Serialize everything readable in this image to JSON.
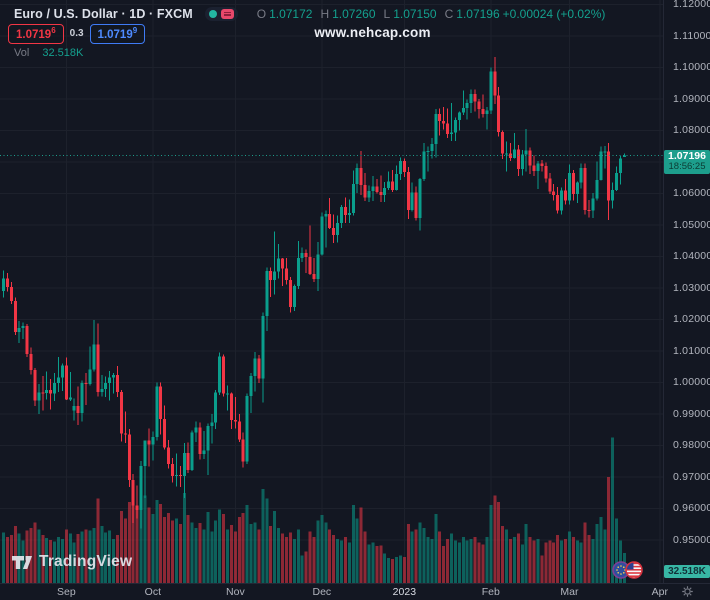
{
  "header": {
    "symbol_title": "Euro / U.S. Dollar · 1D · FXCM",
    "ohlc": {
      "o_label": "O",
      "o": "1.07172",
      "h_label": "H",
      "h": "1.07260",
      "l_label": "L",
      "l": "1.07150",
      "c_label": "C",
      "c": "1.07196",
      "change": "+0.00024 (+0.02%)"
    },
    "bid": {
      "main": "1.0719",
      "sup": "6"
    },
    "spread": "0.3",
    "ask": {
      "main": "1.0719",
      "sup": "9"
    },
    "watermark": "www.nehcap.com",
    "vol_label": "Vol",
    "vol_value": "32.518K"
  },
  "price_tag": {
    "price": "1.07196",
    "countdown": "18:56:25"
  },
  "vol_axis_tag": "32.518K",
  "logo_text": "TradingView",
  "colors": {
    "bg": "#131722",
    "grid": "#1d212c",
    "up": "#0a9e8c",
    "down": "#f23645",
    "axis_text": "#b2b5be",
    "price_line": "#1d9e8c"
  },
  "chart_data": {
    "type": "candlestick",
    "title": "Euro / U.S. Dollar · 1D · FXCM",
    "legend": "volume pane overlaid at bottom, grid on, price axis right, time axis bottom",
    "y_axis": {
      "min": 0.95,
      "max": 1.12,
      "step": 0.01,
      "tick_labels": [
        "1.12000",
        "1.11000",
        "1.10000",
        "1.09000",
        "1.08000",
        "1.07000",
        "1.06000",
        "1.05000",
        "1.04000",
        "1.03000",
        "1.02000",
        "1.01000",
        "1.00000",
        "0.99000",
        "0.98000",
        "0.97000",
        "0.96000",
        "0.95000"
      ]
    },
    "x_ticks": [
      {
        "label": "Sep",
        "i": 16
      },
      {
        "label": "Oct",
        "i": 38
      },
      {
        "label": "Nov",
        "i": 59
      },
      {
        "label": "Dec",
        "i": 81
      },
      {
        "label": "2023",
        "i": 102,
        "year": true
      },
      {
        "label": "Feb",
        "i": 124
      },
      {
        "label": "Mar",
        "i": 144
      },
      {
        "label": "Apr",
        "i": 167
      }
    ],
    "price_line_value": 1.07196,
    "last_volume_k": 32.518,
    "candles_format": [
      "open",
      "high",
      "low",
      "close",
      "volume_k"
    ],
    "candles": [
      [
        1.029,
        1.0355,
        1.027,
        1.033,
        55
      ],
      [
        1.033,
        1.0347,
        1.0288,
        1.0302,
        50
      ],
      [
        1.0302,
        1.0318,
        1.0248,
        1.0258,
        52
      ],
      [
        1.0258,
        1.027,
        1.015,
        1.016,
        62
      ],
      [
        1.016,
        1.0195,
        1.0125,
        1.0172,
        54
      ],
      [
        1.0172,
        1.019,
        1.0138,
        1.0178,
        46
      ],
      [
        1.0178,
        1.0185,
        1.008,
        1.009,
        57
      ],
      [
        1.009,
        1.011,
        1.0025,
        1.0039,
        60
      ],
      [
        1.0039,
        1.0046,
        0.9925,
        0.9943,
        66
      ],
      [
        0.9943,
        0.9995,
        0.99,
        0.9968,
        58
      ],
      [
        0.9968,
        1.002,
        0.991,
        0.9966,
        52
      ],
      [
        0.9966,
        1.0035,
        0.9945,
        0.9975,
        49
      ],
      [
        0.9975,
        1.001,
        0.9913,
        0.9965,
        47
      ],
      [
        0.9965,
        1.003,
        0.994,
        0.9998,
        45
      ],
      [
        0.9998,
        1.008,
        0.997,
        1.0015,
        50
      ],
      [
        1.0015,
        1.006,
        0.9972,
        1.0054,
        48
      ],
      [
        1.0054,
        1.0078,
        0.9944,
        0.9945,
        58
      ],
      [
        0.9945,
        1.0033,
        0.994,
        0.9952,
        54
      ],
      [
        0.991,
        0.9948,
        0.9878,
        0.9925,
        44
      ],
      [
        0.9925,
        0.9986,
        0.9864,
        0.9903,
        53
      ],
      [
        0.9903,
        1.0005,
        0.9875,
        0.9998,
        56
      ],
      [
        0.9998,
        1.003,
        0.9928,
        0.9995,
        58
      ],
      [
        0.9995,
        1.0113,
        0.999,
        1.004,
        57
      ],
      [
        1.004,
        1.0197,
        1.0035,
        1.012,
        60
      ],
      [
        1.012,
        1.0187,
        0.9955,
        0.997,
        92
      ],
      [
        0.997,
        1.0023,
        0.9955,
        0.9979,
        62
      ],
      [
        0.9979,
        1.0018,
        0.9953,
        0.9998,
        55
      ],
      [
        0.9998,
        1.0036,
        0.9943,
        1.0016,
        57
      ],
      [
        1.0016,
        1.0029,
        0.9964,
        1.0023,
        48
      ],
      [
        1.0023,
        1.0051,
        0.9953,
        0.997,
        52
      ],
      [
        0.997,
        0.9975,
        0.9812,
        0.9838,
        78
      ],
      [
        0.9838,
        0.9907,
        0.9807,
        0.9835,
        70
      ],
      [
        0.9835,
        0.9851,
        0.9667,
        0.969,
        88
      ],
      [
        0.969,
        0.9709,
        0.9554,
        0.9609,
        96
      ],
      [
        0.9609,
        0.9672,
        0.9568,
        0.9594,
        84
      ],
      [
        0.9594,
        0.975,
        0.9536,
        0.9735,
        108
      ],
      [
        0.9735,
        0.9816,
        0.9633,
        0.9815,
        95
      ],
      [
        0.9815,
        0.9853,
        0.9733,
        0.9802,
        82
      ],
      [
        0.9802,
        0.9844,
        0.9751,
        0.9826,
        75
      ],
      [
        0.9826,
        0.9999,
        0.9816,
        0.9986,
        90
      ],
      [
        0.9986,
        1.0,
        0.9835,
        0.9884,
        86
      ],
      [
        0.9884,
        0.9926,
        0.9787,
        0.9793,
        72
      ],
      [
        0.9793,
        0.9817,
        0.9726,
        0.9741,
        76
      ],
      [
        0.9741,
        0.976,
        0.9682,
        0.9702,
        68
      ],
      [
        0.9702,
        0.9774,
        0.967,
        0.9706,
        70
      ],
      [
        0.9706,
        0.9735,
        0.9668,
        0.9702,
        64
      ],
      [
        0.9702,
        0.9807,
        0.9632,
        0.9776,
        98
      ],
      [
        0.9776,
        0.9809,
        0.9712,
        0.9721,
        74
      ],
      [
        0.9721,
        0.9847,
        0.9718,
        0.984,
        66
      ],
      [
        0.984,
        0.9875,
        0.9811,
        0.9856,
        60
      ],
      [
        0.9856,
        0.9873,
        0.9755,
        0.9772,
        65
      ],
      [
        0.9772,
        0.9845,
        0.9757,
        0.9784,
        58
      ],
      [
        0.9784,
        0.987,
        0.9705,
        0.9861,
        77
      ],
      [
        0.9861,
        0.9899,
        0.9806,
        0.9873,
        56
      ],
      [
        0.9873,
        0.9976,
        0.9851,
        0.9967,
        68
      ],
      [
        0.9967,
        1.0094,
        0.996,
        1.0082,
        80
      ],
      [
        1.0082,
        1.0088,
        0.9955,
        0.9965,
        75
      ],
      [
        0.9965,
        0.999,
        0.991,
        0.9965,
        58
      ],
      [
        0.9965,
        0.9968,
        0.9852,
        0.9881,
        63
      ],
      [
        0.9881,
        0.9954,
        0.9853,
        0.9876,
        56
      ],
      [
        0.9876,
        0.9899,
        0.981,
        0.9818,
        72
      ],
      [
        0.9818,
        0.984,
        0.973,
        0.9749,
        76
      ],
      [
        0.9749,
        0.9965,
        0.9741,
        0.9957,
        85
      ],
      [
        0.9957,
        1.003,
        0.9903,
        1.002,
        64
      ],
      [
        1.002,
        1.0096,
        0.9971,
        1.0075,
        66
      ],
      [
        1.0075,
        1.0086,
        0.9998,
        1.0012,
        58
      ],
      [
        1.0012,
        1.0222,
        0.9936,
        1.021,
        102
      ],
      [
        1.021,
        1.0364,
        1.0163,
        1.0354,
        92
      ],
      [
        1.0354,
        1.0364,
        1.0271,
        1.0325,
        62
      ],
      [
        1.0325,
        1.0479,
        1.0279,
        1.0351,
        78
      ],
      [
        1.0351,
        1.0439,
        1.033,
        1.0393,
        60
      ],
      [
        1.0393,
        1.0395,
        1.0305,
        1.0362,
        54
      ],
      [
        1.0362,
        1.0394,
        1.031,
        1.0325,
        50
      ],
      [
        1.0325,
        1.0334,
        1.0222,
        1.0239,
        55
      ],
      [
        1.0239,
        1.031,
        1.0226,
        1.0305,
        48
      ],
      [
        1.0305,
        1.0448,
        1.0296,
        1.0395,
        58
      ],
      [
        1.0395,
        1.0428,
        1.0382,
        1.041,
        30
      ],
      [
        1.041,
        1.0421,
        1.0347,
        1.0398,
        34
      ],
      [
        1.0398,
        1.0497,
        1.034,
        1.0344,
        56
      ],
      [
        1.0344,
        1.0394,
        1.0319,
        1.0328,
        50
      ],
      [
        1.0328,
        1.0445,
        1.029,
        1.0406,
        68
      ],
      [
        1.0406,
        1.0539,
        1.0402,
        1.0526,
        74
      ],
      [
        1.0526,
        1.0545,
        1.0428,
        1.0535,
        66
      ],
      [
        1.0535,
        1.0585,
        1.0487,
        1.049,
        58
      ],
      [
        1.049,
        1.0533,
        1.0443,
        1.0467,
        52
      ],
      [
        1.0467,
        1.053,
        1.0444,
        1.0506,
        48
      ],
      [
        1.0506,
        1.0563,
        1.049,
        1.0557,
        46
      ],
      [
        1.0557,
        1.0587,
        1.0505,
        1.0531,
        50
      ],
      [
        1.0531,
        1.058,
        1.0506,
        1.0538,
        44
      ],
      [
        1.0538,
        1.0673,
        1.053,
        1.0629,
        85
      ],
      [
        1.0629,
        1.0695,
        1.0601,
        1.0681,
        70
      ],
      [
        1.0681,
        1.0735,
        1.0594,
        1.0627,
        82
      ],
      [
        1.0627,
        1.0665,
        1.0575,
        1.0586,
        56
      ],
      [
        1.0586,
        1.0624,
        1.0573,
        1.0607,
        42
      ],
      [
        1.0607,
        1.0655,
        1.0576,
        1.0622,
        44
      ],
      [
        1.0622,
        1.0645,
        1.0599,
        1.0604,
        40
      ],
      [
        1.0604,
        1.0657,
        1.0573,
        1.0595,
        41
      ],
      [
        1.0595,
        1.0636,
        1.0573,
        1.0617,
        32
      ],
      [
        1.0617,
        1.067,
        1.061,
        1.0638,
        27
      ],
      [
        1.0638,
        1.0674,
        1.0604,
        1.061,
        26
      ],
      [
        1.061,
        1.0689,
        1.0609,
        1.0661,
        28
      ],
      [
        1.0661,
        1.0713,
        1.0643,
        1.0702,
        30
      ],
      [
        1.0702,
        1.0711,
        1.0652,
        1.0668,
        28
      ],
      [
        1.0668,
        1.0683,
        1.0519,
        1.0547,
        64
      ],
      [
        1.0547,
        1.0635,
        1.0542,
        1.0603,
        56
      ],
      [
        1.0603,
        1.0621,
        1.0514,
        1.0521,
        58
      ],
      [
        1.0521,
        1.0648,
        1.0482,
        1.0645,
        66
      ],
      [
        1.0645,
        1.076,
        1.0639,
        1.0732,
        60
      ],
      [
        1.0732,
        1.0748,
        1.0669,
        1.0735,
        50
      ],
      [
        1.0735,
        1.0776,
        1.0711,
        1.0756,
        48
      ],
      [
        1.0756,
        1.0868,
        1.0713,
        1.0852,
        75
      ],
      [
        1.0852,
        1.0869,
        1.0784,
        1.083,
        56
      ],
      [
        1.083,
        1.0874,
        1.0802,
        1.0822,
        40
      ],
      [
        1.0822,
        1.0869,
        1.0775,
        1.0789,
        48
      ],
      [
        1.0789,
        1.0887,
        1.0766,
        1.0793,
        54
      ],
      [
        1.0793,
        1.084,
        1.0766,
        1.0832,
        46
      ],
      [
        1.0832,
        1.086,
        1.08,
        1.0856,
        44
      ],
      [
        1.0856,
        1.0927,
        1.0848,
        1.0871,
        50
      ],
      [
        1.0871,
        1.0898,
        1.0835,
        1.0886,
        46
      ],
      [
        1.0886,
        1.0929,
        1.0855,
        1.0916,
        48
      ],
      [
        1.0916,
        1.093,
        1.086,
        1.0892,
        50
      ],
      [
        1.0892,
        1.09,
        1.0838,
        1.0868,
        44
      ],
      [
        1.0868,
        1.0913,
        1.084,
        1.0852,
        42
      ],
      [
        1.0852,
        1.0874,
        1.0802,
        1.0863,
        50
      ],
      [
        1.0863,
        1.1,
        1.0852,
        1.0987,
        85
      ],
      [
        1.0987,
        1.1033,
        1.0884,
        1.091,
        95
      ],
      [
        1.091,
        1.0938,
        1.078,
        1.0795,
        88
      ],
      [
        1.0795,
        1.08,
        1.0709,
        1.0726,
        62
      ],
      [
        1.0726,
        1.0765,
        1.0669,
        1.0727,
        58
      ],
      [
        1.0727,
        1.076,
        1.0703,
        1.0712,
        48
      ],
      [
        1.0712,
        1.0791,
        1.071,
        1.0739,
        50
      ],
      [
        1.0739,
        1.0753,
        1.0655,
        1.0677,
        54
      ],
      [
        1.0677,
        1.0737,
        1.0656,
        1.0723,
        42
      ],
      [
        1.0723,
        1.0804,
        1.067,
        1.0736,
        64
      ],
      [
        1.0736,
        1.0745,
        1.0661,
        1.0688,
        50
      ],
      [
        1.0688,
        1.072,
        1.0655,
        1.0671,
        46
      ],
      [
        1.0671,
        1.0702,
        1.0613,
        1.0694,
        48
      ],
      [
        1.0694,
        1.0705,
        1.0669,
        1.0687,
        30
      ],
      [
        1.0687,
        1.0697,
        1.0635,
        1.0647,
        44
      ],
      [
        1.0647,
        1.0664,
        1.0598,
        1.0606,
        46
      ],
      [
        1.0606,
        1.0629,
        1.0577,
        1.0595,
        44
      ],
      [
        1.0595,
        1.062,
        1.0536,
        1.0546,
        52
      ],
      [
        1.0546,
        1.0619,
        1.0532,
        1.0609,
        46
      ],
      [
        1.0609,
        1.0645,
        1.0565,
        1.0577,
        48
      ],
      [
        1.0577,
        1.0691,
        1.0565,
        1.0665,
        56
      ],
      [
        1.0665,
        1.0674,
        1.0577,
        1.0597,
        50
      ],
      [
        1.0597,
        1.0638,
        1.057,
        1.0635,
        46
      ],
      [
        1.0635,
        1.0694,
        1.0616,
        1.068,
        44
      ],
      [
        1.068,
        1.0694,
        1.0532,
        1.0547,
        66
      ],
      [
        1.0547,
        1.0578,
        1.0523,
        1.0545,
        52
      ],
      [
        1.0545,
        1.0601,
        1.0522,
        1.0583,
        48
      ],
      [
        1.0583,
        1.0701,
        1.0577,
        1.0643,
        64
      ],
      [
        1.0643,
        1.0749,
        1.0641,
        1.0732,
        72
      ],
      [
        1.0732,
        1.075,
        1.0678,
        1.0733,
        58
      ],
      [
        1.0733,
        1.076,
        1.0516,
        1.0577,
        115
      ],
      [
        1.0577,
        1.0635,
        1.0551,
        1.0611,
        158
      ],
      [
        1.0611,
        1.0685,
        1.0608,
        1.0665,
        70
      ],
      [
        1.0665,
        1.0718,
        1.0628,
        1.071,
        46
      ],
      [
        1.07172,
        1.0726,
        1.0715,
        1.07196,
        32.5
      ]
    ]
  }
}
